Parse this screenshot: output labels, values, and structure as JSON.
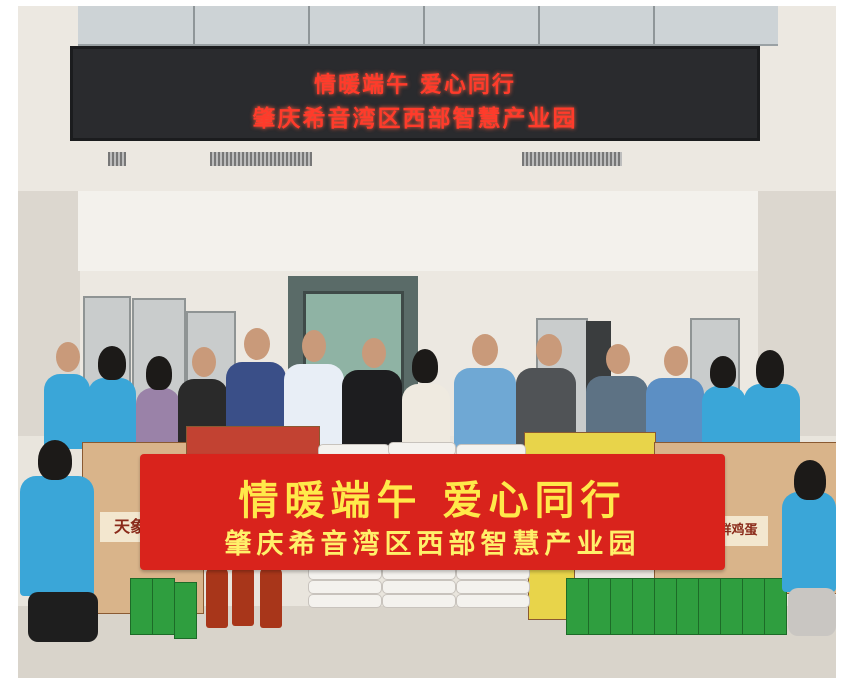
{
  "led_sign": {
    "line1": "情暖端午   爱心同行",
    "line2": "肇庆希音湾区西部智慧产业园"
  },
  "banner": {
    "line1": "情暖端午  爱心同行",
    "line2": "肇庆希音湾区西部智慧产业园"
  },
  "colors": {
    "led_text": "#ff3b2b",
    "banner_background": "#d9231c",
    "banner_text": "#ffe94a",
    "volunteer_vest": "#3aa6d8"
  }
}
